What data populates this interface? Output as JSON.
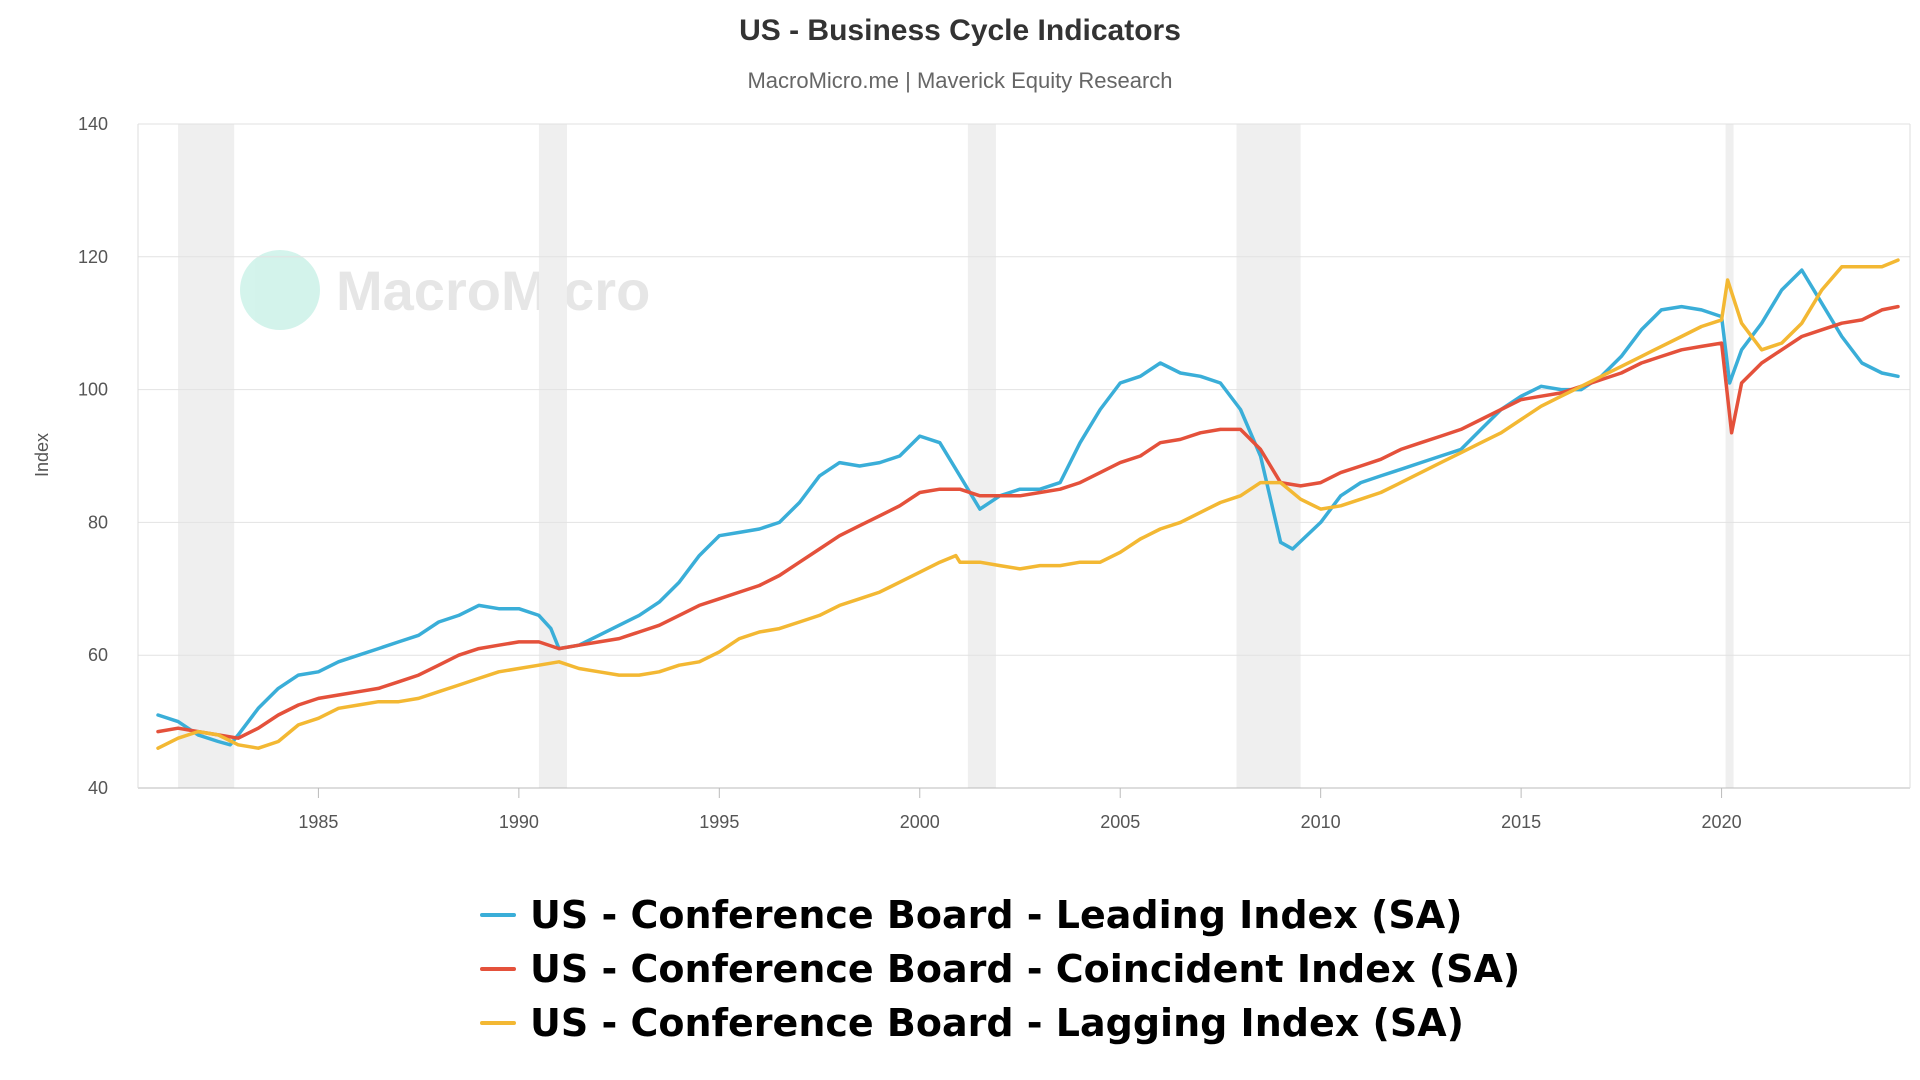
{
  "title": "US - Business Cycle Indicators",
  "subtitle": "MacroMicro.me | Maverick Equity Research",
  "watermark": "MacroMicro",
  "chart_data": {
    "type": "line",
    "title": "US - Business Cycle Indicators",
    "subtitle": "MacroMicro.me | Maverick Equity Research",
    "xlabel": "",
    "ylabel": "Index",
    "xlim": [
      1980.5,
      2024.7
    ],
    "ylim": [
      40,
      140
    ],
    "x_ticks": [
      "1985",
      "1990",
      "1995",
      "2000",
      "2005",
      "2010",
      "2015",
      "2020"
    ],
    "y_ticks": [
      "40",
      "60",
      "80",
      "100",
      "120",
      "140"
    ],
    "grid": true,
    "legend_position": "bottom",
    "recessions": [
      [
        1981.5,
        1982.9
      ],
      [
        1990.5,
        1991.2
      ],
      [
        2001.2,
        2001.9
      ],
      [
        2007.9,
        2009.5
      ],
      [
        2020.1,
        2020.3
      ]
    ],
    "colors": {
      "leading": "#3aaed8",
      "coincident": "#e4513b",
      "lagging": "#f3b833"
    },
    "series": [
      {
        "name": "US - Conference Board - Leading Index (SA)",
        "color": "#3aaed8",
        "points": [
          [
            1981.0,
            51
          ],
          [
            1981.5,
            50
          ],
          [
            1982.0,
            48
          ],
          [
            1982.5,
            47
          ],
          [
            1982.8,
            46.5
          ],
          [
            1983.0,
            48
          ],
          [
            1983.5,
            52
          ],
          [
            1984.0,
            55
          ],
          [
            1984.5,
            57
          ],
          [
            1985.0,
            57.5
          ],
          [
            1985.5,
            59
          ],
          [
            1986.0,
            60
          ],
          [
            1986.5,
            61
          ],
          [
            1987.0,
            62
          ],
          [
            1987.5,
            63
          ],
          [
            1988.0,
            65
          ],
          [
            1988.5,
            66
          ],
          [
            1989.0,
            67.5
          ],
          [
            1989.5,
            67
          ],
          [
            1990.0,
            67
          ],
          [
            1990.5,
            66
          ],
          [
            1990.8,
            64
          ],
          [
            1991.0,
            61
          ],
          [
            1991.5,
            61.5
          ],
          [
            1992.0,
            63
          ],
          [
            1992.5,
            64.5
          ],
          [
            1993.0,
            66
          ],
          [
            1993.5,
            68
          ],
          [
            1994.0,
            71
          ],
          [
            1994.5,
            75
          ],
          [
            1995.0,
            78
          ],
          [
            1995.5,
            78.5
          ],
          [
            1996.0,
            79
          ],
          [
            1996.5,
            80
          ],
          [
            1997.0,
            83
          ],
          [
            1997.5,
            87
          ],
          [
            1998.0,
            89
          ],
          [
            1998.5,
            88.5
          ],
          [
            1999.0,
            89
          ],
          [
            1999.5,
            90
          ],
          [
            2000.0,
            93
          ],
          [
            2000.5,
            92
          ],
          [
            2001.0,
            87
          ],
          [
            2001.5,
            82
          ],
          [
            2002.0,
            84
          ],
          [
            2002.5,
            85
          ],
          [
            2003.0,
            85
          ],
          [
            2003.5,
            86
          ],
          [
            2004.0,
            92
          ],
          [
            2004.5,
            97
          ],
          [
            2005.0,
            101
          ],
          [
            2005.5,
            102
          ],
          [
            2006.0,
            104
          ],
          [
            2006.5,
            102.5
          ],
          [
            2007.0,
            102
          ],
          [
            2007.5,
            101
          ],
          [
            2008.0,
            97
          ],
          [
            2008.5,
            90
          ],
          [
            2009.0,
            77
          ],
          [
            2009.3,
            76
          ],
          [
            2010.0,
            80
          ],
          [
            2010.5,
            84
          ],
          [
            2011.0,
            86
          ],
          [
            2011.5,
            87
          ],
          [
            2012.0,
            88
          ],
          [
            2012.5,
            89
          ],
          [
            2013.0,
            90
          ],
          [
            2013.5,
            91
          ],
          [
            2014.0,
            94
          ],
          [
            2014.5,
            97
          ],
          [
            2015.0,
            99
          ],
          [
            2015.5,
            100.5
          ],
          [
            2016.0,
            100
          ],
          [
            2016.5,
            100
          ],
          [
            2017.0,
            102
          ],
          [
            2017.5,
            105
          ],
          [
            2018.0,
            109
          ],
          [
            2018.5,
            112
          ],
          [
            2019.0,
            112.5
          ],
          [
            2019.5,
            112
          ],
          [
            2020.0,
            111
          ],
          [
            2020.2,
            101
          ],
          [
            2020.5,
            106
          ],
          [
            2021.0,
            110
          ],
          [
            2021.5,
            115
          ],
          [
            2022.0,
            118
          ],
          [
            2022.5,
            113
          ],
          [
            2023.0,
            108
          ],
          [
            2023.5,
            104
          ],
          [
            2024.0,
            102.5
          ],
          [
            2024.4,
            102
          ]
        ]
      },
      {
        "name": "US - Conference Board - Coincident Index (SA)",
        "color": "#e4513b",
        "points": [
          [
            1981.0,
            48.5
          ],
          [
            1981.5,
            49
          ],
          [
            1982.0,
            48.5
          ],
          [
            1982.5,
            48
          ],
          [
            1983.0,
            47.5
          ],
          [
            1983.5,
            49
          ],
          [
            1984.0,
            51
          ],
          [
            1984.5,
            52.5
          ],
          [
            1985.0,
            53.5
          ],
          [
            1985.5,
            54
          ],
          [
            1986.0,
            54.5
          ],
          [
            1986.5,
            55
          ],
          [
            1987.0,
            56
          ],
          [
            1987.5,
            57
          ],
          [
            1988.0,
            58.5
          ],
          [
            1988.5,
            60
          ],
          [
            1989.0,
            61
          ],
          [
            1989.5,
            61.5
          ],
          [
            1990.0,
            62
          ],
          [
            1990.5,
            62
          ],
          [
            1991.0,
            61
          ],
          [
            1991.5,
            61.5
          ],
          [
            1992.0,
            62
          ],
          [
            1992.5,
            62.5
          ],
          [
            1993.0,
            63.5
          ],
          [
            1993.5,
            64.5
          ],
          [
            1994.0,
            66
          ],
          [
            1994.5,
            67.5
          ],
          [
            1995.0,
            68.5
          ],
          [
            1995.5,
            69.5
          ],
          [
            1996.0,
            70.5
          ],
          [
            1996.5,
            72
          ],
          [
            1997.0,
            74
          ],
          [
            1997.5,
            76
          ],
          [
            1998.0,
            78
          ],
          [
            1998.5,
            79.5
          ],
          [
            1999.0,
            81
          ],
          [
            1999.5,
            82.5
          ],
          [
            2000.0,
            84.5
          ],
          [
            2000.5,
            85
          ],
          [
            2001.0,
            85
          ],
          [
            2001.5,
            84
          ],
          [
            2002.0,
            84
          ],
          [
            2002.5,
            84
          ],
          [
            2003.0,
            84.5
          ],
          [
            2003.5,
            85
          ],
          [
            2004.0,
            86
          ],
          [
            2004.5,
            87.5
          ],
          [
            2005.0,
            89
          ],
          [
            2005.5,
            90
          ],
          [
            2006.0,
            92
          ],
          [
            2006.5,
            92.5
          ],
          [
            2007.0,
            93.5
          ],
          [
            2007.5,
            94
          ],
          [
            2008.0,
            94
          ],
          [
            2008.5,
            91
          ],
          [
            2009.0,
            86
          ],
          [
            2009.5,
            85.5
          ],
          [
            2010.0,
            86
          ],
          [
            2010.5,
            87.5
          ],
          [
            2011.0,
            88.5
          ],
          [
            2011.5,
            89.5
          ],
          [
            2012.0,
            91
          ],
          [
            2012.5,
            92
          ],
          [
            2013.0,
            93
          ],
          [
            2013.5,
            94
          ],
          [
            2014.0,
            95.5
          ],
          [
            2014.5,
            97
          ],
          [
            2015.0,
            98.5
          ],
          [
            2015.5,
            99
          ],
          [
            2016.0,
            99.5
          ],
          [
            2016.5,
            100.5
          ],
          [
            2017.0,
            101.5
          ],
          [
            2017.5,
            102.5
          ],
          [
            2018.0,
            104
          ],
          [
            2018.5,
            105
          ],
          [
            2019.0,
            106
          ],
          [
            2019.5,
            106.5
          ],
          [
            2020.0,
            107
          ],
          [
            2020.25,
            93.5
          ],
          [
            2020.5,
            101
          ],
          [
            2021.0,
            104
          ],
          [
            2021.5,
            106
          ],
          [
            2022.0,
            108
          ],
          [
            2022.5,
            109
          ],
          [
            2023.0,
            110
          ],
          [
            2023.5,
            110.5
          ],
          [
            2024.0,
            112
          ],
          [
            2024.4,
            112.5
          ]
        ]
      },
      {
        "name": "US - Conference Board - Lagging Index (SA)",
        "color": "#f3b833",
        "points": [
          [
            1981.0,
            46
          ],
          [
            1981.5,
            47.5
          ],
          [
            1982.0,
            48.5
          ],
          [
            1982.5,
            48
          ],
          [
            1983.0,
            46.5
          ],
          [
            1983.5,
            46
          ],
          [
            1984.0,
            47
          ],
          [
            1984.5,
            49.5
          ],
          [
            1985.0,
            50.5
          ],
          [
            1985.5,
            52
          ],
          [
            1986.0,
            52.5
          ],
          [
            1986.5,
            53
          ],
          [
            1987.0,
            53
          ],
          [
            1987.5,
            53.5
          ],
          [
            1988.0,
            54.5
          ],
          [
            1988.5,
            55.5
          ],
          [
            1989.0,
            56.5
          ],
          [
            1989.5,
            57.5
          ],
          [
            1990.0,
            58
          ],
          [
            1990.5,
            58.5
          ],
          [
            1991.0,
            59
          ],
          [
            1991.5,
            58
          ],
          [
            1992.0,
            57.5
          ],
          [
            1992.5,
            57
          ],
          [
            1993.0,
            57
          ],
          [
            1993.5,
            57.5
          ],
          [
            1994.0,
            58.5
          ],
          [
            1994.5,
            59
          ],
          [
            1995.0,
            60.5
          ],
          [
            1995.5,
            62.5
          ],
          [
            1996.0,
            63.5
          ],
          [
            1996.5,
            64
          ],
          [
            1997.0,
            65
          ],
          [
            1997.5,
            66
          ],
          [
            1998.0,
            67.5
          ],
          [
            1998.5,
            68.5
          ],
          [
            1999.0,
            69.5
          ],
          [
            1999.5,
            71
          ],
          [
            2000.0,
            72.5
          ],
          [
            2000.5,
            74
          ],
          [
            2000.9,
            75
          ],
          [
            2001.0,
            74
          ],
          [
            2001.5,
            74
          ],
          [
            2002.0,
            73.5
          ],
          [
            2002.5,
            73
          ],
          [
            2003.0,
            73.5
          ],
          [
            2003.5,
            73.5
          ],
          [
            2004.0,
            74
          ],
          [
            2004.5,
            74
          ],
          [
            2005.0,
            75.5
          ],
          [
            2005.5,
            77.5
          ],
          [
            2006.0,
            79
          ],
          [
            2006.5,
            80
          ],
          [
            2007.0,
            81.5
          ],
          [
            2007.5,
            83
          ],
          [
            2008.0,
            84
          ],
          [
            2008.5,
            86
          ],
          [
            2009.0,
            86
          ],
          [
            2009.5,
            83.5
          ],
          [
            2010.0,
            82
          ],
          [
            2010.5,
            82.5
          ],
          [
            2011.0,
            83.5
          ],
          [
            2011.5,
            84.5
          ],
          [
            2012.0,
            86
          ],
          [
            2012.5,
            87.5
          ],
          [
            2013.0,
            89
          ],
          [
            2013.5,
            90.5
          ],
          [
            2014.0,
            92
          ],
          [
            2014.5,
            93.5
          ],
          [
            2015.0,
            95.5
          ],
          [
            2015.5,
            97.5
          ],
          [
            2016.0,
            99
          ],
          [
            2016.5,
            100.5
          ],
          [
            2017.0,
            102
          ],
          [
            2017.5,
            103.5
          ],
          [
            2018.0,
            105
          ],
          [
            2018.5,
            106.5
          ],
          [
            2019.0,
            108
          ],
          [
            2019.5,
            109.5
          ],
          [
            2020.0,
            110.5
          ],
          [
            2020.15,
            116.5
          ],
          [
            2020.5,
            110
          ],
          [
            2021.0,
            106
          ],
          [
            2021.5,
            107
          ],
          [
            2022.0,
            110
          ],
          [
            2022.5,
            115
          ],
          [
            2023.0,
            118.5
          ],
          [
            2023.5,
            118.5
          ],
          [
            2024.0,
            118.5
          ],
          [
            2024.4,
            119.5
          ]
        ]
      }
    ]
  }
}
